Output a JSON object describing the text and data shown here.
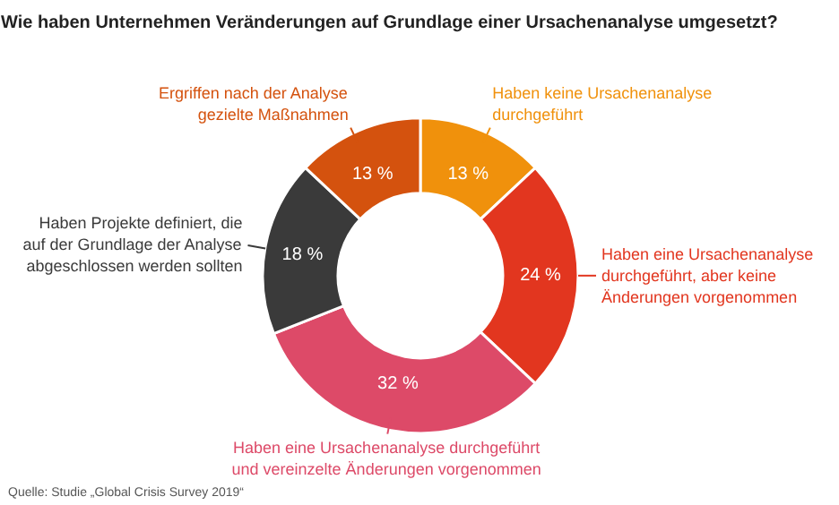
{
  "chart_data": {
    "type": "donut",
    "title": "Wie haben Unternehmen Veränderungen auf Grundlage einer Ursachenanalyse umgesetzt?",
    "categories": [
      "Haben keine Ursachenanalyse\ndurchgeführt",
      "Haben eine Ursachenanalyse\ndurchgeführt, aber keine\nÄnderungen vorgenommen",
      "Haben eine Ursachenanalyse durchgeführt\nund vereinzelte Änderungen vorgenommen",
      "Haben Projekte definiert, die\nauf der Grundlage der Analyse\nabgeschlossen werden sollten",
      "Ergriffen nach der Analyse\ngezielte Maßnahmen"
    ],
    "values": [
      13,
      24,
      32,
      18,
      13
    ],
    "colors": [
      "#f0910c",
      "#e2361f",
      "#dd4a68",
      "#3a3a3a",
      "#d4520e"
    ],
    "value_labels": [
      "13 %",
      "24 %",
      "32 %",
      "18 %",
      "13 %"
    ],
    "annotations": [
      "Quelle: Studie „Global Crisis Survey 2019“"
    ]
  }
}
